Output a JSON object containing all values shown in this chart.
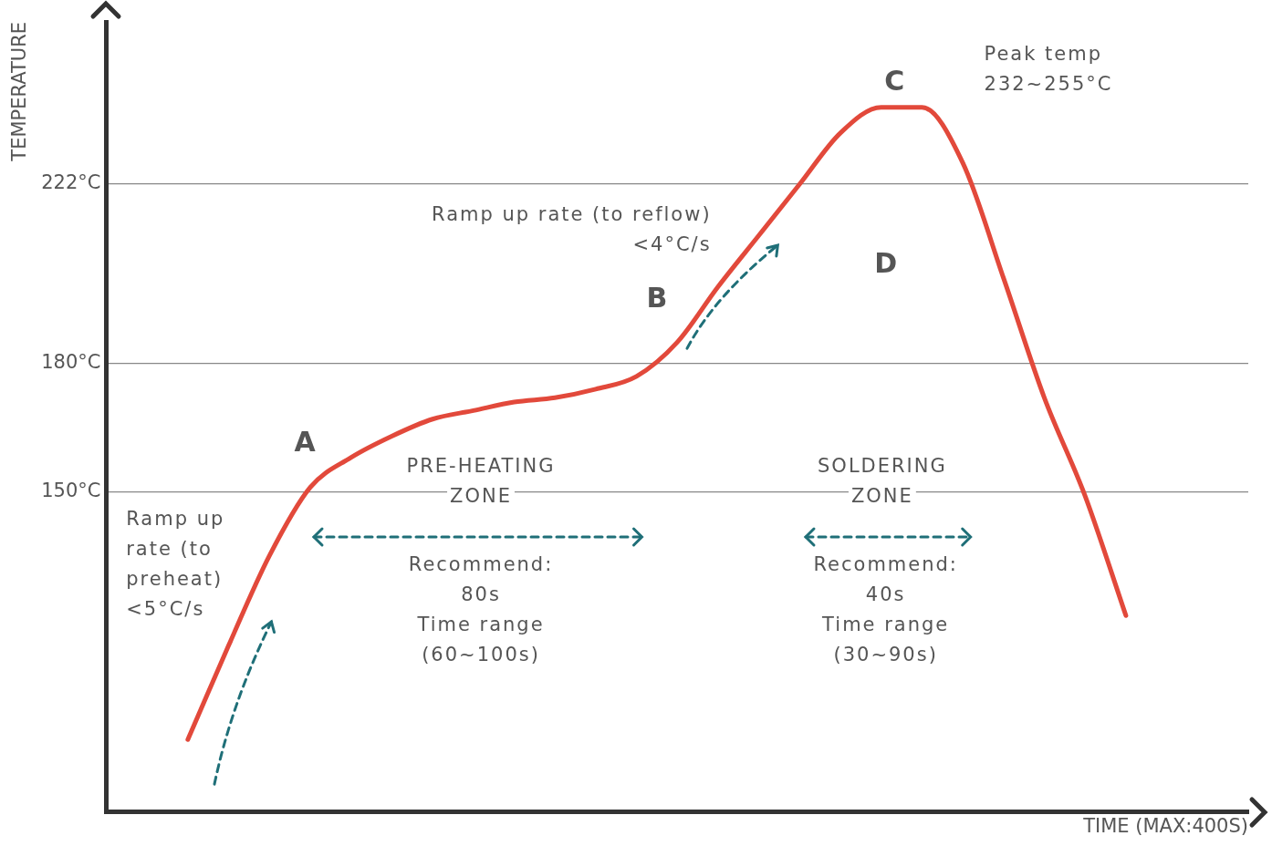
{
  "chart_data": {
    "type": "line",
    "xlabel": "TIME (MAX:400S)",
    "ylabel": "TEMPERATURE",
    "categories": [
      null,
      null,
      null,
      null,
      null,
      null,
      null,
      null,
      null,
      null,
      null,
      null,
      null,
      null,
      null,
      null,
      null,
      null,
      null,
      null,
      null,
      null,
      null,
      null,
      null,
      null,
      null,
      null,
      null
    ],
    "series": [
      {
        "color": "#e2493b",
        "values": [
          null,
          null,
          92,
          114,
          135,
          151,
          158,
          163,
          167,
          169,
          171,
          172,
          174,
          177,
          185,
          198,
          210,
          222,
          234,
          240,
          240,
          227,
          200,
          172,
          149,
          121,
          null,
          null,
          null
        ]
      }
    ],
    "ylim": [
      75,
      260
    ],
    "yticks": [
      {
        "value": 150,
        "label": "150°C"
      },
      {
        "value": 180,
        "label": "180°C"
      },
      {
        "value": 222,
        "label": "222°C"
      }
    ],
    "tick_labels": "y",
    "grid": "y",
    "marker": "none",
    "line_style": "solid",
    "annotations": [
      "A",
      "B",
      "C",
      "D",
      "Peak temp\n232~255°C",
      "Ramp up rate (to reflow)\n<4°C/s",
      "Ramp up\nrate (to\npreheat)\n<5°C/s",
      "PRE-HEATING\nZONE",
      "Recommend:\n80s\nTime range\n(60~100s)",
      "SOLDERING\nZONE",
      "Recommend:\n40s\nTime range\n(30~90s)"
    ]
  }
}
